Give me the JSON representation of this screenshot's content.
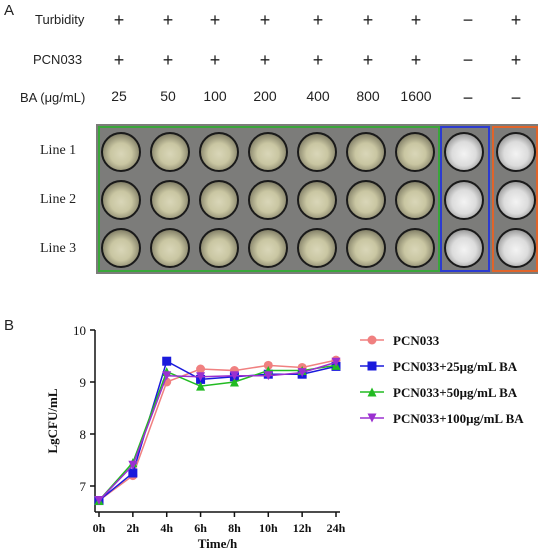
{
  "panel_a": {
    "letter": "A",
    "rows": [
      {
        "label": "Turbidity",
        "cells": [
          "+",
          "+",
          "+",
          "+",
          "+",
          "+",
          "+",
          "−",
          "+"
        ]
      },
      {
        "label": "PCN033",
        "cells": [
          "+",
          "+",
          "+",
          "+",
          "+",
          "+",
          "+",
          "−",
          "+"
        ]
      },
      {
        "label": "BA (μg/mL)",
        "cells": [
          "25",
          "50",
          "100",
          "200",
          "400",
          "800",
          "1600",
          "−",
          "−"
        ]
      }
    ],
    "lines": [
      "Line 1",
      "Line 2",
      "Line 3"
    ],
    "box_colors": {
      "green": "#3aa63a",
      "blue": "#2c3bd0",
      "orange": "#e0642a"
    }
  },
  "panel_b": {
    "letter": "B"
  },
  "chart_data": {
    "type": "line",
    "x": [
      "0h",
      "2h",
      "4h",
      "6h",
      "8h",
      "10h",
      "12h",
      "24h"
    ],
    "xlabel": "Time/h",
    "ylabel": "LgCFU/mL",
    "ylim": [
      6.5,
      10
    ],
    "yticks": [
      7,
      8,
      9,
      10
    ],
    "legend_position": "right",
    "series": [
      {
        "name": "PCN033",
        "color": "#f08080",
        "marker": "circle",
        "values": [
          6.72,
          7.2,
          9.0,
          9.25,
          9.22,
          9.32,
          9.28,
          9.42
        ]
      },
      {
        "name": "PCN033+25μg/mL BA",
        "color": "#1a1adc",
        "marker": "square",
        "values": [
          6.72,
          7.25,
          9.4,
          9.05,
          9.1,
          9.15,
          9.15,
          9.3
        ]
      },
      {
        "name": "PCN033+50μg/mL BA",
        "color": "#22bb22",
        "marker": "triangle-up",
        "values": [
          6.72,
          7.45,
          9.2,
          8.92,
          9.0,
          9.22,
          9.22,
          9.32
        ]
      },
      {
        "name": "PCN033+100μg/mL BA",
        "color": "#9b30d0",
        "marker": "triangle-down",
        "values": [
          6.72,
          7.4,
          9.12,
          9.1,
          9.12,
          9.12,
          9.18,
          9.38
        ]
      }
    ]
  }
}
